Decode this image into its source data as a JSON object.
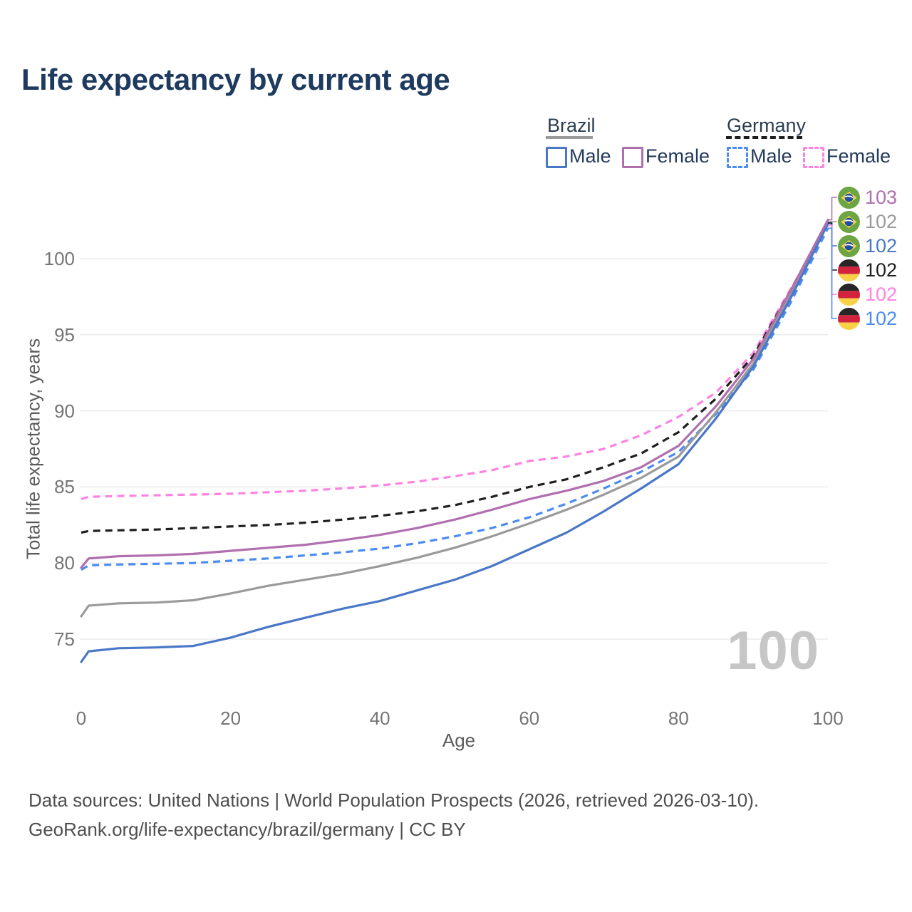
{
  "title": "Life expectancy by current age",
  "legend": {
    "brazil": {
      "name": "Brazil",
      "line_style": "solid",
      "underline_color": "#9a9a9a",
      "male_label": "Male",
      "male_color": "#4a77c6",
      "female_label": "Female",
      "female_color": "#b06fae"
    },
    "germany": {
      "name": "Germany",
      "line_style": "dashed",
      "underline_color": "#1f1f1f",
      "male_label": "Male",
      "male_color": "#4a8cf0",
      "female_label": "Female",
      "female_color": "#ff82e0"
    }
  },
  "watermark": "100",
  "chart_data": {
    "type": "line",
    "title": "Life expectancy by current age",
    "xlabel": "Age",
    "ylabel": "Total life expectancy, years",
    "x_ticks": [
      0,
      20,
      40,
      60,
      80,
      100
    ],
    "y_ticks": [
      75,
      80,
      85,
      90,
      95,
      100
    ],
    "xlim": [
      0,
      100
    ],
    "ylim": [
      72.5,
      103.5
    ],
    "grid": "horizontal-only",
    "x": [
      0,
      1,
      5,
      10,
      15,
      20,
      25,
      30,
      35,
      40,
      45,
      50,
      55,
      60,
      65,
      70,
      75,
      80,
      85,
      90,
      95,
      100
    ],
    "series": [
      {
        "name": "Germany Female",
        "country": "Germany",
        "sex": "Female",
        "color": "#ff82e0",
        "dash": true,
        "values": [
          84.2,
          84.35,
          84.4,
          84.45,
          84.5,
          84.55,
          84.65,
          84.75,
          84.9,
          85.1,
          85.35,
          85.7,
          86.1,
          86.7,
          87.0,
          87.5,
          88.4,
          89.6,
          91.2,
          93.8,
          98.0,
          102.2
        ]
      },
      {
        "name": "Germany",
        "country": "Germany",
        "sex": "Both",
        "color": "#1f1f1f",
        "dash": true,
        "values": [
          82.0,
          82.1,
          82.15,
          82.2,
          82.3,
          82.4,
          82.5,
          82.65,
          82.85,
          83.1,
          83.4,
          83.8,
          84.35,
          85.0,
          85.5,
          86.3,
          87.2,
          88.6,
          90.8,
          93.6,
          97.9,
          102.35
        ]
      },
      {
        "name": "Germany Male",
        "country": "Germany",
        "sex": "Male",
        "color": "#4a8cf0",
        "dash": true,
        "values": [
          79.55,
          79.85,
          79.9,
          79.95,
          80.0,
          80.15,
          80.3,
          80.5,
          80.7,
          80.95,
          81.3,
          81.75,
          82.3,
          83.0,
          83.9,
          84.9,
          86.0,
          87.3,
          89.8,
          92.7,
          97.1,
          102.0
        ]
      },
      {
        "name": "Brazil",
        "country": "Brazil",
        "sex": "Both",
        "color": "#9a9a9a",
        "dash": false,
        "values": [
          76.5,
          77.2,
          77.35,
          77.4,
          77.55,
          78.0,
          78.5,
          78.9,
          79.3,
          79.8,
          80.35,
          81.0,
          81.75,
          82.6,
          83.5,
          84.5,
          85.6,
          87.0,
          89.9,
          93.1,
          97.6,
          102.45
        ]
      },
      {
        "name": "Brazil Male",
        "country": "Brazil",
        "sex": "Male",
        "color": "#4a77c6",
        "dash": false,
        "values": [
          73.5,
          74.2,
          74.4,
          74.45,
          74.55,
          75.1,
          75.8,
          76.4,
          77.0,
          77.5,
          78.2,
          78.9,
          79.8,
          80.9,
          82.0,
          83.4,
          84.9,
          86.5,
          89.5,
          92.9,
          97.4,
          102.3
        ]
      },
      {
        "name": "Brazil Female",
        "country": "Brazil",
        "sex": "Female",
        "color": "#b06fae",
        "dash": false,
        "values": [
          79.7,
          80.3,
          80.45,
          80.5,
          80.6,
          80.8,
          81.0,
          81.2,
          81.5,
          81.85,
          82.3,
          82.85,
          83.5,
          84.2,
          84.75,
          85.4,
          86.3,
          87.7,
          90.3,
          93.4,
          97.9,
          102.55
        ]
      }
    ],
    "legend_position": "top-right",
    "endpoint_labels": [
      {
        "flag": "brazil",
        "value": "103",
        "series": "Brazil Female",
        "color": "#b06fae"
      },
      {
        "flag": "brazil",
        "value": "102",
        "series": "Brazil",
        "color": "#9a9a9a"
      },
      {
        "flag": "brazil",
        "value": "102",
        "series": "Brazil Male",
        "color": "#4a77c6"
      },
      {
        "flag": "germany",
        "value": "102",
        "series": "Germany",
        "color": "#1f1f1f"
      },
      {
        "flag": "germany",
        "value": "102",
        "series": "Germany Female",
        "color": "#ff82e0"
      },
      {
        "flag": "germany",
        "value": "102",
        "series": "Germany Male",
        "color": "#4a8cf0"
      }
    ]
  },
  "footer": {
    "line1": "Data sources: United Nations | World Population Prospects (2026, retrieved 2026-03-10).",
    "line2": "GeoRank.org/life-expectancy/brazil/germany | CC BY"
  }
}
